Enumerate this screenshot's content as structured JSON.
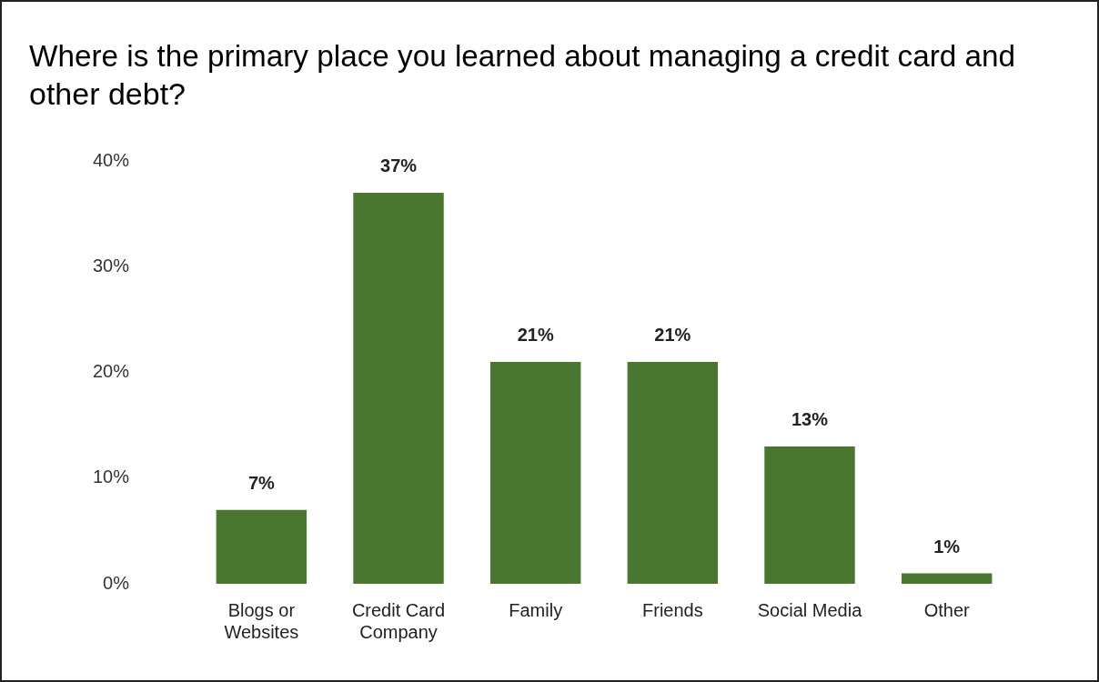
{
  "chart_data": {
    "type": "bar",
    "title": "Where is the primary place you learned about managing a credit card and other debt?",
    "categories": [
      "Blogs or Websites",
      "Credit Card Company",
      "Family",
      "Friends",
      "Social Media",
      "Other"
    ],
    "values": [
      7,
      37,
      21,
      21,
      13,
      1
    ],
    "value_labels": [
      "7%",
      "37%",
      "21%",
      "21%",
      "13%",
      "1%"
    ],
    "color": "#4a772f",
    "ylim": [
      0,
      40
    ],
    "yticks": [
      {
        "value": 0,
        "label": "0%"
      },
      {
        "value": 10,
        "label": "10%"
      },
      {
        "value": 20,
        "label": "20%"
      },
      {
        "value": 30,
        "label": "30%"
      },
      {
        "value": 40,
        "label": "40%"
      }
    ],
    "grid": false,
    "data_labels": true
  }
}
